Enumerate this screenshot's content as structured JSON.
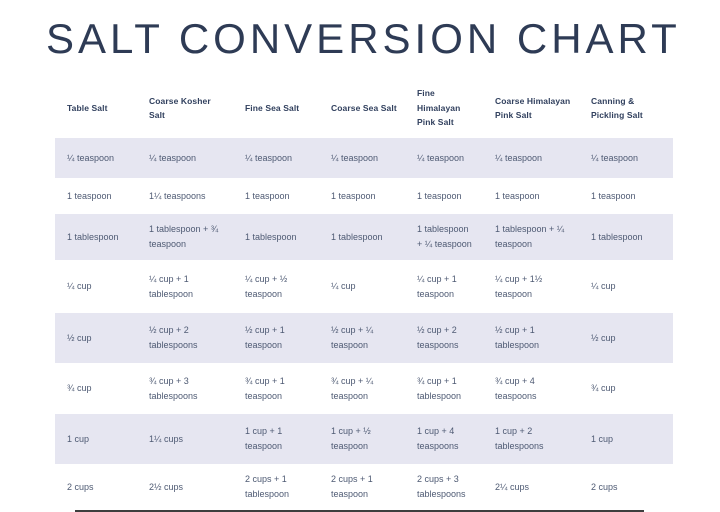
{
  "title": "SALT CONVERSION CHART",
  "colors": {
    "title": "#2e3b55",
    "header_text": "#31405e",
    "cell_text": "#4e5a73",
    "row_stripe": "#e6e6f1",
    "background": "#ffffff"
  },
  "chart_data": {
    "type": "table",
    "title": "SALT CONVERSION CHART",
    "columns": [
      "Table Salt",
      "Coarse Kosher Salt",
      "Fine Sea Salt",
      "Coarse Sea Salt",
      "Fine Himalayan Pink Salt",
      "Coarse Himalayan Pink Salt",
      "Canning & Pickling Salt"
    ],
    "rows": [
      [
        "¼ teaspoon",
        "¼ teaspoon",
        "¼ teaspoon",
        "¼ teaspoon",
        "¼ teaspoon",
        "¼ teaspoon",
        "¼ teaspoon"
      ],
      [
        "1 teaspoon",
        "1¼ teaspoons",
        "1 teaspoon",
        "1 teaspoon",
        "1 teaspoon",
        "1 teaspoon",
        "1 teaspoon"
      ],
      [
        "1 tablespoon",
        "1 tablespoon + ¾ teaspoon",
        "1 tablespoon",
        "1 tablespoon",
        "1 tablespoon + ¼ teaspoon",
        "1 tablespoon + ¼ teaspoon",
        "1 tablespoon"
      ],
      [
        "¼ cup",
        "¼ cup + 1 tablespoon",
        "¼ cup + ½ teaspoon",
        "¼ cup",
        "¼ cup + 1 teaspoon",
        "¼ cup + 1½ teaspoon",
        "¼ cup"
      ],
      [
        "½ cup",
        "½ cup + 2 tablespoons",
        "½ cup + 1 teaspoon",
        "½ cup + ¼ teaspoon",
        "½ cup + 2 teaspoons",
        "½ cup + 1 tablespoon",
        "½ cup"
      ],
      [
        "¾ cup",
        "¾ cup + 3 tablespoons",
        "¾ cup + 1 teaspoon",
        "¾ cup + ¼ teaspoon",
        "¾ cup + 1 tablespoon",
        "¾ cup + 4 teaspoons",
        "¾ cup"
      ],
      [
        "1 cup",
        "1¼ cups",
        "1 cup + 1 teaspoon",
        "1 cup + ½ teaspoon",
        "1 cup + 4 teaspoons",
        "1 cup + 2 tablespoons",
        "1 cup"
      ],
      [
        "2 cups",
        "2½ cups",
        "2 cups + 1 tablespoon",
        "2 cups + 1 teaspoon",
        "2 cups + 3 tablespoons",
        "2¼ cups",
        "2 cups"
      ]
    ],
    "shaded_row_indexes": [
      0,
      2,
      4,
      6
    ],
    "legend_position": "none",
    "grid": false
  }
}
